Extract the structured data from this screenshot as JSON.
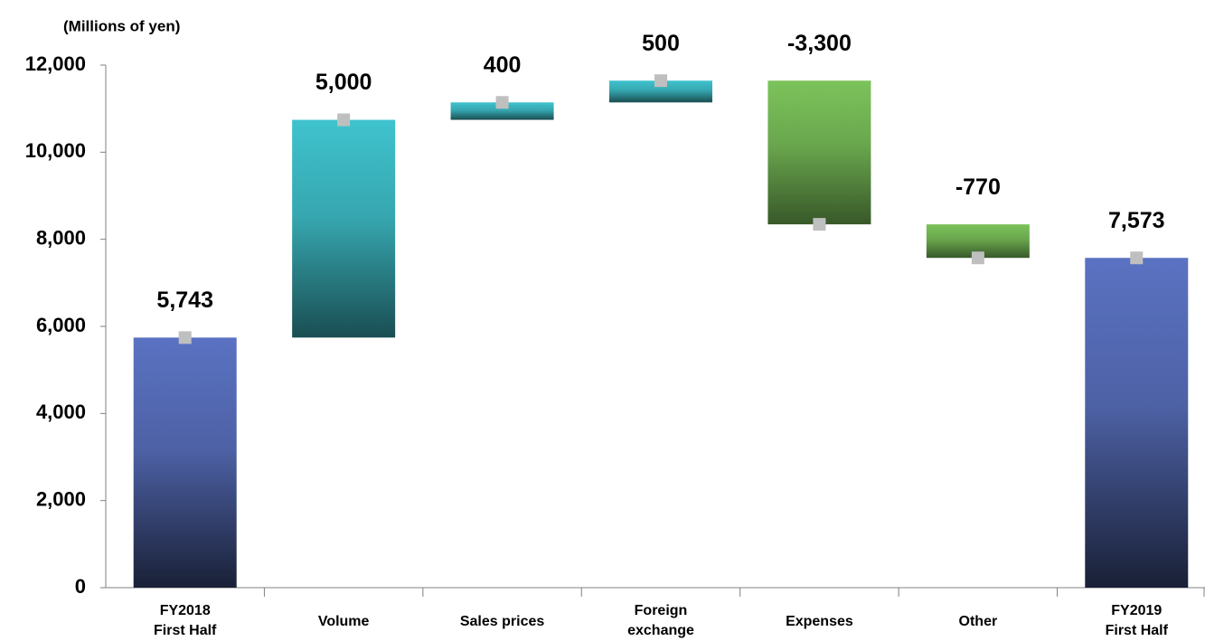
{
  "chart_data": {
    "type": "waterfall",
    "unit_label": "(Millions of yen)",
    "categories": [
      [
        "FY2018",
        "First Half"
      ],
      [
        "Volume"
      ],
      [
        "Sales prices"
      ],
      [
        "Foreign",
        "exchange"
      ],
      [
        "Expenses"
      ],
      [
        "Other"
      ],
      [
        "FY2019",
        "First Half"
      ]
    ],
    "values": [
      5743,
      5000,
      400,
      500,
      -3300,
      -770,
      7573
    ],
    "value_labels": [
      "5,743",
      "5,000",
      "400",
      "500",
      "-3,300",
      "-770",
      "7,573"
    ],
    "total_color": "#5a72c2",
    "increase_color": "#3fc3ce",
    "decrease_color": "#7cc35b",
    "marker_color": "#bfbfbf",
    "ylim": [
      0,
      12000
    ],
    "yticks": [
      0,
      {
        "value": 2000,
        "label": "2,000"
      },
      {
        "value": 4000,
        "label": "4,000"
      },
      {
        "value": 6000,
        "label": "6,000"
      },
      {
        "value": 8000,
        "label": "8,000"
      },
      {
        "value": 10000,
        "label": "10,000"
      },
      {
        "value": 12000,
        "label": "12,000"
      }
    ],
    "grid": false
  }
}
